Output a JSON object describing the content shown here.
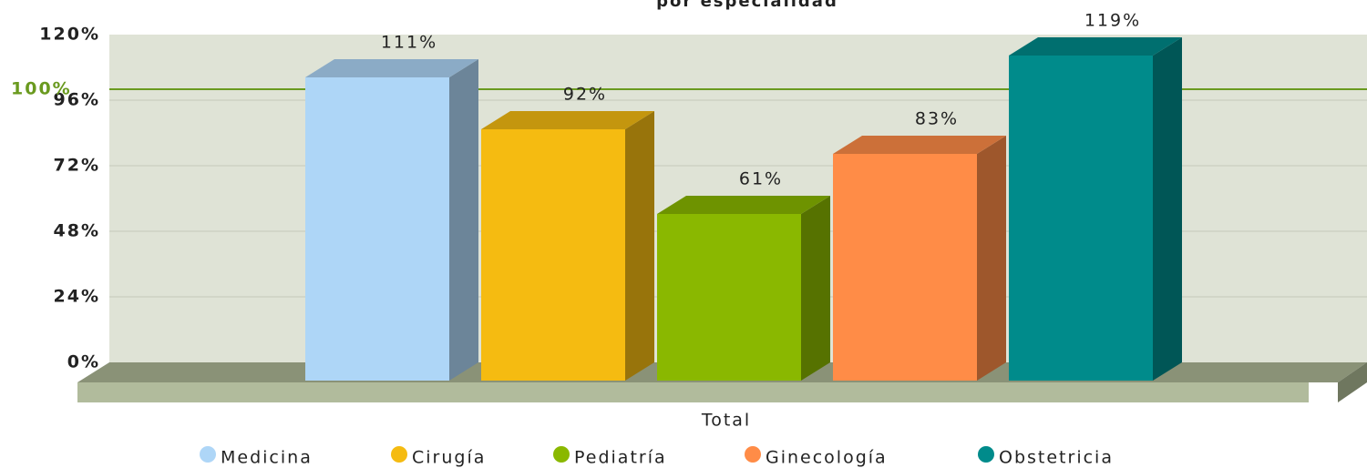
{
  "chart_data": {
    "type": "bar",
    "title": "por especialidad",
    "categories": [
      "Total"
    ],
    "series": [
      {
        "name": "Medicina",
        "color": "#aed6f7",
        "values": [
          111
        ],
        "value_labels": [
          "111%"
        ]
      },
      {
        "name": "Cirugía",
        "color": "#f5bb11",
        "values": [
          92
        ],
        "value_labels": [
          "92%"
        ]
      },
      {
        "name": "Pediatría",
        "color": "#8ab800",
        "values": [
          61
        ],
        "value_labels": [
          "61%"
        ]
      },
      {
        "name": "Ginecología",
        "color": "#ff8c47",
        "values": [
          83
        ],
        "value_labels": [
          "83%"
        ]
      },
      {
        "name": "Obstetricia",
        "color": "#008b8b",
        "values": [
          119
        ],
        "value_labels": [
          "119%"
        ]
      }
    ],
    "ylim": [
      0,
      120
    ],
    "yticks": [
      {
        "value": 0,
        "label": "0%"
      },
      {
        "value": 24,
        "label": "24%"
      },
      {
        "value": 48,
        "label": "48%"
      },
      {
        "value": 72,
        "label": "72%"
      },
      {
        "value": 96,
        "label": "96%"
      },
      {
        "value": 120,
        "label": "120%"
      }
    ],
    "target_line": {
      "value": 100,
      "label": "100%",
      "color": "#6a9a1f"
    },
    "grid": true,
    "legend": "bottom"
  }
}
